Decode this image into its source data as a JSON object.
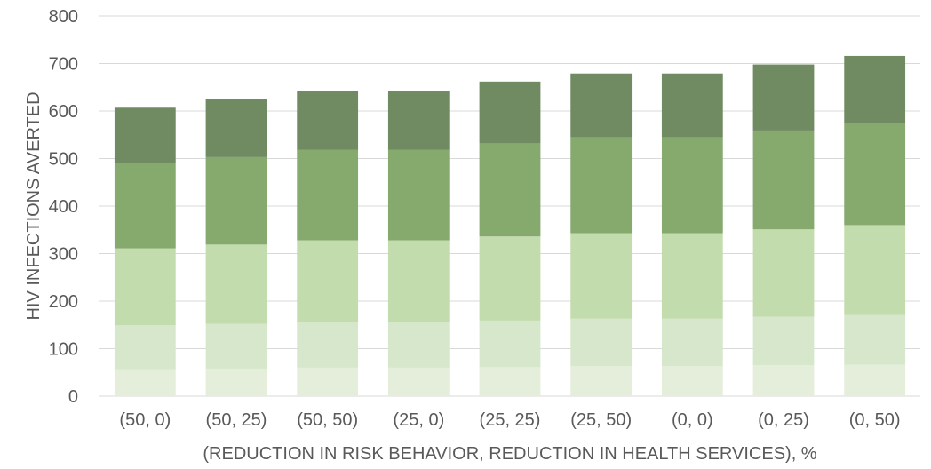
{
  "chart_data": {
    "type": "bar",
    "stacked": true,
    "title": "",
    "xlabel": "(REDUCTION IN RISK BEHAVIOR, REDUCTION IN HEALTH SERVICES), %",
    "ylabel": "HIV INFECTIONS AVERTED",
    "ylim": [
      0,
      800
    ],
    "yticks": [
      0,
      100,
      200,
      300,
      400,
      500,
      600,
      700,
      800
    ],
    "grid": true,
    "legend": "none",
    "categories": [
      "(50, 0)",
      "(50, 25)",
      "(50, 50)",
      "(25, 0)",
      "(25, 25)",
      "(25, 50)",
      "(0, 0)",
      "(0, 25)",
      "(0, 50)"
    ],
    "series": [
      {
        "color": "#e4eedb",
        "values": [
          57,
          58,
          60,
          60,
          61,
          63,
          63,
          65,
          66
        ]
      },
      {
        "color": "#d7e7cb",
        "values": [
          92,
          94,
          96,
          96,
          98,
          100,
          100,
          102,
          105
        ]
      },
      {
        "color": "#c3dcad",
        "values": [
          162,
          167,
          172,
          172,
          177,
          180,
          180,
          184,
          189
        ]
      },
      {
        "color": "#86a96e",
        "values": [
          180,
          184,
          190,
          190,
          196,
          202,
          202,
          208,
          214
        ]
      },
      {
        "color": "#708a62",
        "values": [
          116,
          122,
          125,
          125,
          130,
          134,
          134,
          139,
          142
        ]
      }
    ]
  }
}
